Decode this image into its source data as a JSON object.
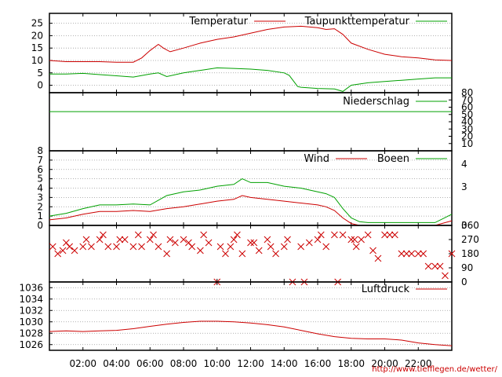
{
  "source_link": "http://www.tiefflegen.de/wetter/",
  "colors": {
    "red": "#cc0000",
    "green": "#00a000",
    "grid": "#999999",
    "frame": "#000000"
  },
  "chart_data": [
    {
      "type": "line",
      "panel": "temperature",
      "ylim": [
        -3,
        29
      ],
      "yticks": [
        0,
        5,
        10,
        15,
        20,
        25
      ],
      "grid": true,
      "legend_position": "top-right",
      "series": [
        {
          "name": "Temperatur",
          "color": "#cc0000",
          "x": [
            0,
            1,
            2,
            3,
            4,
            5,
            5.5,
            6,
            6.5,
            6.8,
            7.2,
            8,
            9,
            10,
            11,
            12,
            13,
            14,
            15,
            16,
            16.5,
            17,
            17.5,
            18,
            19,
            20,
            21,
            22,
            23,
            24
          ],
          "y": [
            10,
            9.5,
            9.5,
            9.5,
            9.3,
            9.3,
            11,
            14,
            16.5,
            15,
            13.5,
            15,
            17,
            18.5,
            19.5,
            21,
            22.5,
            23.5,
            23.8,
            23.2,
            22.5,
            22.8,
            20.5,
            17,
            14.5,
            12.5,
            11.5,
            11,
            10.2,
            10
          ]
        },
        {
          "name": "Taupunkttemperatur",
          "color": "#00a000",
          "x": [
            0,
            1,
            2,
            3,
            4,
            5,
            6,
            6.5,
            7,
            8,
            9,
            10,
            11,
            12,
            13,
            14,
            14.3,
            14.8,
            15,
            16,
            17,
            17.5,
            18,
            19,
            20,
            21,
            22,
            23,
            24
          ],
          "y": [
            4.5,
            4.5,
            4.8,
            4.3,
            3.8,
            3.3,
            4.5,
            5,
            3.5,
            5,
            6,
            7,
            6.8,
            6.5,
            6,
            5,
            4,
            -0.5,
            -0.8,
            -1.3,
            -1.5,
            -2.5,
            0,
            1,
            1.5,
            2,
            2.5,
            3,
            3
          ]
        }
      ]
    },
    {
      "type": "line",
      "panel": "precipitation",
      "ylim": [
        0,
        80
      ],
      "yticks": [
        10,
        20,
        30,
        40,
        50,
        60,
        70,
        80
      ],
      "series": [
        {
          "name": "Niederschlag",
          "color": "#00a000",
          "x": [
            0,
            24
          ],
          "y": [
            54,
            54
          ]
        }
      ]
    },
    {
      "type": "line",
      "panel": "wind",
      "ylim": [
        0,
        8
      ],
      "yticks": [
        0,
        1,
        2,
        3,
        4,
        5,
        6,
        7,
        8
      ],
      "right_ticks": [
        "0",
        "3",
        "4"
      ],
      "series": [
        {
          "name": "Wind",
          "color": "#cc0000",
          "x": [
            0,
            1,
            2,
            3,
            4,
            5,
            6,
            7,
            8,
            9,
            10,
            11,
            11.5,
            12,
            13,
            14,
            15,
            16,
            16.5,
            17,
            17.5,
            18,
            18.5,
            19,
            20,
            21,
            22,
            23,
            24
          ],
          "y": [
            0.6,
            0.8,
            1.2,
            1.5,
            1.5,
            1.6,
            1.5,
            1.8,
            2,
            2.3,
            2.6,
            2.8,
            3.2,
            3,
            2.8,
            2.6,
            2.4,
            2.2,
            2,
            1.6,
            0.8,
            0.2,
            0,
            0,
            0,
            0,
            0,
            0,
            0.5
          ]
        },
        {
          "name": "Boeen",
          "color": "#00a000",
          "x": [
            0,
            1,
            2,
            3,
            4,
            5,
            6,
            7,
            8,
            9,
            10,
            11,
            11.5,
            12,
            13,
            14,
            15,
            16,
            16.5,
            17,
            17.5,
            18,
            18.5,
            19,
            20,
            21,
            22,
            23,
            24
          ],
          "y": [
            1,
            1.3,
            1.8,
            2.2,
            2.2,
            2.3,
            2.2,
            3.2,
            3.6,
            3.8,
            4.2,
            4.4,
            5,
            4.6,
            4.6,
            4.2,
            4,
            3.6,
            3.4,
            3,
            1.8,
            0.8,
            0.4,
            0.3,
            0.3,
            0.3,
            0.3,
            0.3,
            1.2
          ]
        }
      ]
    },
    {
      "type": "scatter",
      "panel": "wind-direction",
      "ylim": [
        0,
        360
      ],
      "yticks": [
        0,
        90,
        180,
        270,
        360
      ],
      "marker": "x",
      "series": [
        {
          "color": "#cc0000",
          "x": [
            0.2,
            0.5,
            0.8,
            1.2,
            1.5,
            2,
            2.5,
            3,
            3.5,
            4,
            4.5,
            5,
            5.5,
            6,
            6.5,
            7,
            7.5,
            8,
            8.5,
            9,
            9.5,
            10,
            10.5,
            10.8,
            11,
            11.5,
            12,
            12.5,
            13,
            13.5,
            14,
            14.5,
            15,
            15.5,
            16,
            16.5,
            17,
            17.5,
            18,
            18.3,
            18.6,
            19,
            19.3,
            19.6,
            20,
            20.3,
            20.6,
            21,
            21.3,
            21.6,
            22,
            22.3,
            22.6,
            23,
            23.3,
            23.6,
            24
          ],
          "y": [
            225,
            180,
            200,
            225,
            200,
            225,
            225,
            270,
            225,
            225,
            270,
            225,
            225,
            270,
            225,
            180,
            250,
            270,
            225,
            200,
            250,
            0,
            180,
            225,
            270,
            180,
            250,
            200,
            270,
            180,
            225,
            0,
            225,
            250,
            270,
            225,
            300,
            300,
            270,
            225,
            270,
            300,
            200,
            150,
            300,
            300,
            300,
            180,
            180,
            180,
            180,
            180,
            100,
            100,
            100,
            40,
            180
          ]
        },
        {
          "color": "#cc0000",
          "x": [
            1,
            2.2,
            3.2,
            4.2,
            5.3,
            6.2,
            7.2,
            8.3,
            9.2,
            10.2,
            11.2,
            12.2,
            13.2,
            14.2,
            15.2,
            16.2,
            17.2,
            18.2
          ],
          "y": [
            250,
            270,
            300,
            270,
            300,
            300,
            270,
            250,
            300,
            225,
            300,
            250,
            225,
            270,
            0,
            300,
            0,
            270
          ]
        }
      ]
    },
    {
      "type": "line",
      "panel": "pressure",
      "ylim": [
        1025,
        1037
      ],
      "yticks": [
        1026,
        1028,
        1030,
        1032,
        1034,
        1036
      ],
      "legend_position": "top-right",
      "series": [
        {
          "name": "Luftdruck",
          "color": "#cc0000",
          "x": [
            0,
            1,
            2,
            3,
            4,
            5,
            6,
            7,
            8,
            9,
            10,
            11,
            12,
            13,
            14,
            15,
            16,
            17,
            18,
            19,
            20,
            21,
            22,
            23,
            24
          ],
          "y": [
            1028.3,
            1028.4,
            1028.3,
            1028.4,
            1028.5,
            1028.8,
            1029.2,
            1029.6,
            1029.9,
            1030.1,
            1030.1,
            1030,
            1029.8,
            1029.5,
            1029.1,
            1028.5,
            1027.9,
            1027.4,
            1027.1,
            1027,
            1027,
            1026.8,
            1026.3,
            1026,
            1025.8
          ]
        }
      ]
    }
  ],
  "x_axis": {
    "xlim": [
      0,
      24
    ],
    "ticks": [
      2,
      4,
      6,
      8,
      10,
      12,
      14,
      16,
      18,
      20,
      22
    ],
    "tick_labels": [
      "02:00",
      "04:00",
      "06:00",
      "08:00",
      "10:00",
      "12:00",
      "14:00",
      "16:00",
      "18:00",
      "20:00",
      "22:00"
    ]
  }
}
